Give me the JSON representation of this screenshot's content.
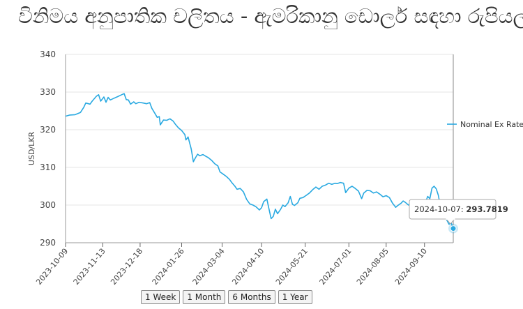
{
  "chart_data": {
    "type": "line",
    "title": "විනිමය අනුපාතික චලිතය - ඇමරිකානු ඩොලර් සඳහා රුපියල්",
    "ylabel": "USD/LKR",
    "xlabel": "",
    "ylim": [
      290,
      340
    ],
    "y_ticks": [
      "290",
      "300",
      "310",
      "320",
      "330",
      "340"
    ],
    "x_ticks": [
      "2023-10-09",
      "2023-11-13",
      "2023-12-18",
      "2024-01-26",
      "2024-03-04",
      "2024-04-10",
      "2024-05-21",
      "2024-07-01",
      "2024-08-05",
      "2024-09-10"
    ],
    "grid": true,
    "legend": "right",
    "series": [
      {
        "name": "Nominal Ex Rate",
        "color": "#29a9e1",
        "points": [
          [
            "2023-10-09",
            323.6
          ],
          [
            "2023-10-13",
            323.9
          ],
          [
            "2023-10-18",
            324.0
          ],
          [
            "2023-10-23",
            324.6
          ],
          [
            "2023-10-26",
            325.9
          ],
          [
            "2023-10-28",
            327.1
          ],
          [
            "2023-11-01",
            326.8
          ],
          [
            "2023-11-03",
            327.6
          ],
          [
            "2023-11-07",
            328.9
          ],
          [
            "2023-11-09",
            329.3
          ],
          [
            "2023-11-11",
            327.6
          ],
          [
            "2023-11-14",
            328.7
          ],
          [
            "2023-11-16",
            327.3
          ],
          [
            "2023-11-18",
            328.6
          ],
          [
            "2023-11-20",
            327.9
          ],
          [
            "2023-11-23",
            328.3
          ],
          [
            "2023-11-27",
            328.8
          ],
          [
            "2023-11-30",
            329.2
          ],
          [
            "2023-12-03",
            329.6
          ],
          [
            "2023-12-05",
            328.0
          ],
          [
            "2023-12-07",
            327.9
          ],
          [
            "2023-12-09",
            326.8
          ],
          [
            "2023-12-12",
            327.4
          ],
          [
            "2023-12-14",
            326.9
          ],
          [
            "2023-12-17",
            327.3
          ],
          [
            "2023-12-21",
            327.1
          ],
          [
            "2023-12-24",
            326.9
          ],
          [
            "2023-12-27",
            327.2
          ],
          [
            "2023-12-29",
            325.7
          ],
          [
            "2024-01-01",
            324.3
          ],
          [
            "2024-01-03",
            323.3
          ],
          [
            "2024-01-05",
            323.5
          ],
          [
            "2024-01-06",
            321.3
          ],
          [
            "2024-01-09",
            322.6
          ],
          [
            "2024-01-12",
            322.5
          ],
          [
            "2024-01-15",
            322.9
          ],
          [
            "2024-01-18",
            322.3
          ],
          [
            "2024-01-20",
            321.5
          ],
          [
            "2024-01-23",
            320.5
          ],
          [
            "2024-01-26",
            319.8
          ],
          [
            "2024-01-29",
            318.7
          ],
          [
            "2024-01-30",
            317.3
          ],
          [
            "2024-02-01",
            318.1
          ],
          [
            "2024-02-04",
            314.9
          ],
          [
            "2024-02-06",
            311.5
          ],
          [
            "2024-02-08",
            312.6
          ],
          [
            "2024-02-10",
            313.5
          ],
          [
            "2024-02-12",
            313.1
          ],
          [
            "2024-02-15",
            313.4
          ],
          [
            "2024-02-18",
            312.9
          ],
          [
            "2024-02-20",
            312.6
          ],
          [
            "2024-02-23",
            311.9
          ],
          [
            "2024-02-26",
            311.0
          ],
          [
            "2024-02-29",
            310.4
          ],
          [
            "2024-03-02",
            308.8
          ],
          [
            "2024-03-05",
            308.2
          ],
          [
            "2024-03-08",
            307.6
          ],
          [
            "2024-03-11",
            306.8
          ],
          [
            "2024-03-13",
            306.0
          ],
          [
            "2024-03-16",
            305.0
          ],
          [
            "2024-03-18",
            304.2
          ],
          [
            "2024-03-21",
            304.4
          ],
          [
            "2024-03-24",
            303.5
          ],
          [
            "2024-03-27",
            301.5
          ],
          [
            "2024-03-30",
            300.3
          ],
          [
            "2024-04-02",
            300.0
          ],
          [
            "2024-04-05",
            299.5
          ],
          [
            "2024-04-08",
            298.7
          ],
          [
            "2024-04-10",
            299.3
          ],
          [
            "2024-04-12",
            300.9
          ],
          [
            "2024-04-15",
            301.6
          ],
          [
            "2024-04-17",
            299.0
          ],
          [
            "2024-04-19",
            296.4
          ],
          [
            "2024-04-21",
            297.0
          ],
          [
            "2024-04-23",
            298.9
          ],
          [
            "2024-04-25",
            297.7
          ],
          [
            "2024-04-28",
            298.9
          ],
          [
            "2024-04-30",
            300.0
          ],
          [
            "2024-05-02",
            299.6
          ],
          [
            "2024-05-05",
            300.6
          ],
          [
            "2024-05-07",
            302.3
          ],
          [
            "2024-05-09",
            300.2
          ],
          [
            "2024-05-11",
            299.9
          ],
          [
            "2024-05-14",
            300.6
          ],
          [
            "2024-05-16",
            301.8
          ],
          [
            "2024-05-19",
            302.0
          ],
          [
            "2024-05-22",
            302.6
          ],
          [
            "2024-05-25",
            303.2
          ],
          [
            "2024-05-28",
            304.1
          ],
          [
            "2024-05-31",
            304.8
          ],
          [
            "2024-06-03",
            304.2
          ],
          [
            "2024-06-06",
            305.0
          ],
          [
            "2024-06-09",
            305.3
          ],
          [
            "2024-06-12",
            305.8
          ],
          [
            "2024-06-15",
            305.5
          ],
          [
            "2024-06-18",
            305.8
          ],
          [
            "2024-06-20",
            305.7
          ],
          [
            "2024-06-23",
            306.0
          ],
          [
            "2024-06-26",
            305.8
          ],
          [
            "2024-06-28",
            303.3
          ],
          [
            "2024-07-01",
            304.5
          ],
          [
            "2024-07-04",
            305.0
          ],
          [
            "2024-07-07",
            304.4
          ],
          [
            "2024-07-10",
            303.7
          ],
          [
            "2024-07-13",
            301.7
          ],
          [
            "2024-07-15",
            303.2
          ],
          [
            "2024-07-18",
            303.9
          ],
          [
            "2024-07-21",
            303.8
          ],
          [
            "2024-07-24",
            303.2
          ],
          [
            "2024-07-27",
            303.5
          ],
          [
            "2024-07-30",
            302.9
          ],
          [
            "2024-08-02",
            302.2
          ],
          [
            "2024-08-05",
            302.5
          ],
          [
            "2024-08-08",
            302.0
          ],
          [
            "2024-08-11",
            300.5
          ],
          [
            "2024-08-14",
            299.4
          ],
          [
            "2024-08-16",
            299.9
          ],
          [
            "2024-08-19",
            300.5
          ],
          [
            "2024-08-21",
            301.1
          ],
          [
            "2024-08-23",
            300.7
          ],
          [
            "2024-08-26",
            300.0
          ],
          [
            "2024-08-29",
            300.8
          ],
          [
            "2024-09-01",
            300.2
          ],
          [
            "2024-09-04",
            299.2
          ],
          [
            "2024-09-07",
            299.9
          ],
          [
            "2024-09-10",
            300.0
          ],
          [
            "2024-09-13",
            302.3
          ],
          [
            "2024-09-15",
            301.7
          ],
          [
            "2024-09-17",
            304.5
          ],
          [
            "2024-09-19",
            305.0
          ],
          [
            "2024-09-21",
            304.3
          ],
          [
            "2024-09-23",
            302.6
          ],
          [
            "2024-09-25",
            299.5
          ],
          [
            "2024-09-28",
            297.6
          ],
          [
            "2024-10-01",
            296.0
          ],
          [
            "2024-10-03",
            294.9
          ],
          [
            "2024-10-05",
            295.3
          ],
          [
            "2024-10-07",
            293.7819
          ]
        ]
      }
    ],
    "highlight": {
      "date": "2024-10-07",
      "value": "293.7819",
      "separator": ":"
    }
  },
  "range_buttons": [
    {
      "label": "1 Week"
    },
    {
      "label": "1 Month"
    },
    {
      "label": "6 Months"
    },
    {
      "label": "1 Year"
    }
  ]
}
